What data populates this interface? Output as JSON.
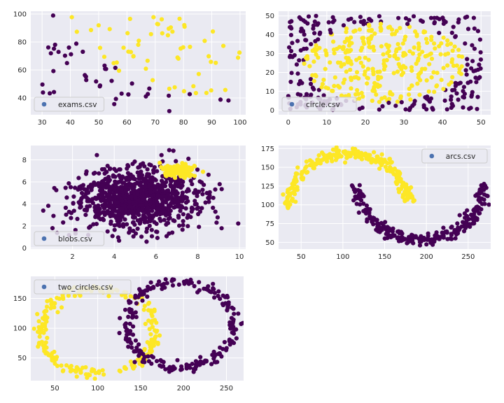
{
  "figure": {
    "background": "#ffffff",
    "axes_face": "#eaeaf2",
    "grid_color": "#ffffff",
    "legend_face": "#eaeaf2",
    "legend_edge": "#cccccc",
    "legend_marker_color": "#4c72b0",
    "class_colors": [
      "#440154",
      "#fde725"
    ]
  },
  "chart_data": [
    {
      "type": "scatter",
      "legend": "exams.csv",
      "legend_loc": "lower-left",
      "xlim": [
        26,
        102
      ],
      "ylim": [
        28,
        102
      ],
      "xticks": [
        30,
        40,
        50,
        60,
        70,
        80,
        90,
        100
      ],
      "yticks": [
        40,
        60,
        80,
        100
      ],
      "grid": true,
      "points": [
        [
          34.6,
          78.0,
          0
        ],
        [
          30.3,
          43.9,
          0
        ],
        [
          35.8,
          72.9,
          0
        ],
        [
          60.2,
          86.3,
          1
        ],
        [
          79.0,
          75.3,
          1
        ],
        [
          45.1,
          56.3,
          0
        ],
        [
          61.1,
          96.5,
          1
        ],
        [
          75.0,
          46.6,
          1
        ],
        [
          76.1,
          87.4,
          1
        ],
        [
          84.4,
          43.5,
          1
        ],
        [
          95.9,
          38.2,
          0
        ],
        [
          75.0,
          30.6,
          0
        ],
        [
          82.3,
          76.5,
          1
        ],
        [
          69.4,
          97.7,
          1
        ],
        [
          39.5,
          76.0,
          0
        ],
        [
          53.9,
          89.2,
          1
        ],
        [
          69.1,
          52.7,
          1
        ],
        [
          67.9,
          46.7,
          0
        ],
        [
          70.7,
          92.9,
          1
        ],
        [
          76.9,
          47.6,
          1
        ],
        [
          67.4,
          42.8,
          0
        ],
        [
          89.7,
          65.8,
          1
        ],
        [
          50.5,
          48.9,
          0
        ],
        [
          34.2,
          44.2,
          0
        ],
        [
          77.9,
          68.9,
          1
        ],
        [
          62.3,
          69.9,
          1
        ],
        [
          80.2,
          44.8,
          1
        ],
        [
          93.1,
          38.8,
          0
        ],
        [
          61.8,
          50.3,
          0
        ],
        [
          38.8,
          64.9,
          0
        ],
        [
          61.4,
          72.8,
          1
        ],
        [
          85.4,
          57.1,
          1
        ],
        [
          52.1,
          63.1,
          0
        ],
        [
          52.0,
          69.4,
          1
        ],
        [
          40.2,
          71.2,
          0
        ],
        [
          54.6,
          52.2,
          0
        ],
        [
          33.9,
          98.9,
          0
        ],
        [
          64.2,
          80.9,
          1
        ],
        [
          74.8,
          41.6,
          0
        ],
        [
          34.2,
          75.2,
          0
        ],
        [
          60.5,
          42.5,
          0
        ],
        [
          99.8,
          72.4,
          1
        ],
        [
          82.2,
          42.7,
          0
        ],
        [
          88.9,
          69.8,
          1
        ],
        [
          94.8,
          45.7,
          1
        ],
        [
          67.3,
          66.6,
          1
        ],
        [
          57.2,
          59.5,
          1
        ],
        [
          80.4,
          90.9,
          1
        ],
        [
          68.5,
          85.6,
          1
        ],
        [
          42.1,
          78.8,
          0
        ],
        [
          75.5,
          90.4,
          1
        ],
        [
          78.6,
          96.6,
          1
        ],
        [
          52.3,
          60.8,
          0
        ],
        [
          94.1,
          77.2,
          1
        ],
        [
          90.4,
          87.5,
          1
        ],
        [
          55.5,
          35.6,
          0
        ],
        [
          74.5,
          84.8,
          1
        ],
        [
          89.8,
          45.4,
          1
        ],
        [
          83.5,
          48.4,
          1
        ],
        [
          42.3,
          87.3,
          1
        ],
        [
          99.3,
          68.8,
          1
        ],
        [
          55.3,
          64.9,
          1
        ],
        [
          74.8,
          89.5,
          1
        ],
        [
          32.7,
          43.3,
          0
        ],
        [
          64.0,
          78.0,
          1
        ],
        [
          30.1,
          49.6,
          0
        ],
        [
          66.7,
          41.1,
          0
        ],
        [
          40.5,
          97.7,
          1
        ],
        [
          49.1,
          51.8,
          0
        ],
        [
          80.3,
          92.1,
          1
        ],
        [
          66.7,
          60.9,
          1
        ],
        [
          32.2,
          76.1,
          0
        ],
        [
          72.3,
          96.2,
          1
        ],
        [
          60.5,
          73.1,
          1
        ],
        [
          58.8,
          75.9,
          1
        ],
        [
          99.8,
          72.4,
          1
        ],
        [
          47.3,
          88.5,
          1
        ],
        [
          50.5,
          75.8,
          1
        ],
        [
          60.5,
          42.5,
          0
        ],
        [
          71.0,
          92.7,
          1
        ],
        [
          56.1,
          39.3,
          0
        ],
        [
          38.1,
          70.2,
          0
        ],
        [
          33.1,
          71.9,
          0
        ],
        [
          45.5,
          55.2,
          0
        ],
        [
          34.0,
          59.2,
          0
        ],
        [
          50.0,
          91.9,
          1
        ],
        [
          56.4,
          65.3,
          1
        ],
        [
          62.3,
          69.7,
          1
        ],
        [
          55.9,
          61.5,
          0
        ],
        [
          87.5,
          80.8,
          1
        ],
        [
          91.4,
          65.1,
          1
        ],
        [
          72.5,
          86.2,
          1
        ],
        [
          88.1,
          43.6,
          1
        ],
        [
          78.2,
          68.1,
          1
        ],
        [
          79.9,
          76.2,
          1
        ],
        [
          58.1,
          43.1,
          0
        ],
        [
          45.6,
          52.8,
          0
        ],
        [
          50.4,
          48.3,
          0
        ],
        [
          52.6,
          60.7,
          0
        ],
        [
          44.4,
          73.0,
          0
        ]
      ]
    },
    {
      "type": "scatter",
      "legend": "circle.csv",
      "legend_loc": "lower-left",
      "xlim": [
        -2.5,
        52.5
      ],
      "ylim": [
        -2.5,
        52.5
      ],
      "xticks": [
        0,
        10,
        20,
        30,
        40,
        50
      ],
      "yticks": [
        0,
        10,
        20,
        30,
        40,
        50
      ],
      "grid": true,
      "generator": {
        "kind": "circle",
        "n": 520,
        "seed": 11,
        "center": [
          25,
          25
        ],
        "radius": 21,
        "x_range": [
          0,
          50
        ],
        "y_range": [
          0,
          50
        ]
      }
    },
    {
      "type": "scatter",
      "legend": "blobs.csv",
      "legend_loc": "lower-left",
      "xlim": [
        0.0,
        10.3
      ],
      "ylim": [
        -0.1,
        9.3
      ],
      "xticks": [
        2,
        4,
        6,
        8,
        10
      ],
      "yticks": [
        0,
        2,
        4,
        6,
        8
      ],
      "grid": true,
      "generator": {
        "kind": "blobs",
        "seed": 23,
        "blobs": [
          {
            "n": 950,
            "cx": 5.0,
            "cy": 4.4,
            "sx": 1.45,
            "sy": 1.35,
            "cls": 0
          },
          {
            "n": 120,
            "cx": 7.0,
            "cy": 7.0,
            "sx": 0.45,
            "sy": 0.32,
            "cls": 1
          }
        ]
      }
    },
    {
      "type": "scatter",
      "legend": "arcs.csv",
      "legend_loc": "upper-right",
      "xlim": [
        23,
        277
      ],
      "ylim": [
        41,
        179
      ],
      "xticks": [
        50,
        100,
        150,
        200,
        250
      ],
      "yticks": [
        50,
        75,
        100,
        125,
        150,
        175
      ],
      "grid": true,
      "generator": {
        "kind": "arcs",
        "seed": 37,
        "n_each": 260
      }
    },
    {
      "type": "scatter",
      "legend": "two_circles.csv",
      "legend_loc": "upper-left",
      "xlim": [
        22,
        270
      ],
      "ylim": [
        12,
        187
      ],
      "xticks": [
        50,
        100,
        150,
        200,
        250
      ],
      "yticks": [
        50,
        100,
        150
      ],
      "grid": true,
      "generator": {
        "kind": "two_circles",
        "seed": 51,
        "n_each": 230
      }
    }
  ]
}
